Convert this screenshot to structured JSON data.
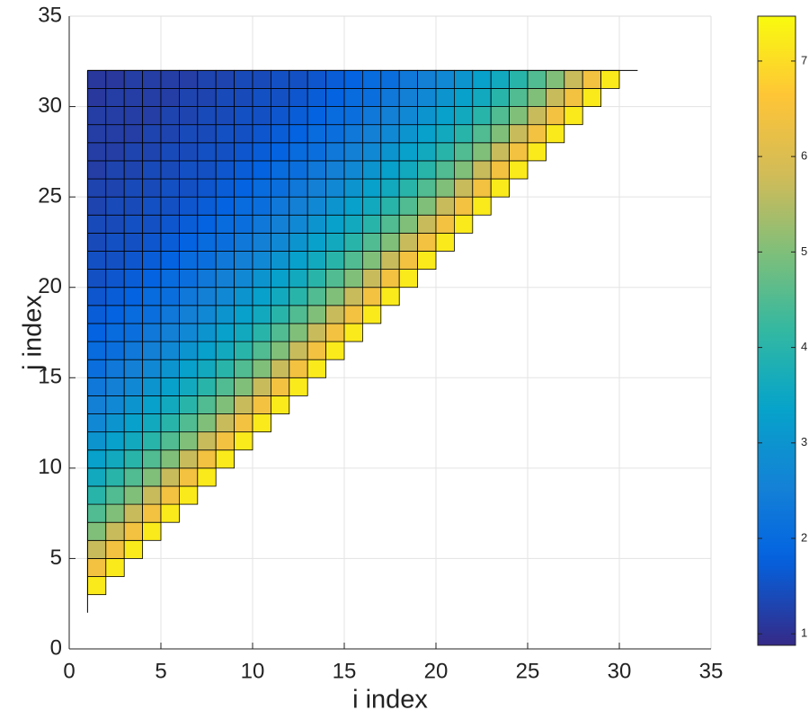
{
  "chart_data": {
    "type": "heatmap",
    "xlabel": "i index",
    "ylabel": "j index",
    "xlim": [
      0,
      35
    ],
    "ylim": [
      0,
      35
    ],
    "xticks": [
      0,
      5,
      10,
      15,
      20,
      25,
      30,
      35
    ],
    "yticks": [
      0,
      5,
      10,
      15,
      20,
      25,
      30,
      35
    ],
    "grid": true,
    "colormap": "parula",
    "clim": [
      0.88,
      7.47
    ],
    "cticks": [
      1,
      2,
      3,
      4,
      5,
      6,
      7
    ],
    "x_edges": [
      1,
      31
    ],
    "y_edges": [
      2,
      32
    ],
    "z": [
      [
        7.2
      ],
      [
        6.4,
        7.2
      ],
      [
        5.7,
        6.4,
        7.2
      ],
      [
        5.0,
        5.7,
        6.4,
        7.2
      ],
      [
        4.5,
        5.0,
        5.7,
        6.4,
        7.2
      ],
      [
        4.0,
        4.5,
        5.0,
        5.7,
        6.4,
        7.2
      ],
      [
        3.6,
        4.0,
        4.5,
        5.0,
        5.7,
        6.4,
        7.2
      ],
      [
        3.3,
        3.6,
        4.0,
        4.5,
        5.0,
        5.7,
        6.4,
        7.2
      ],
      [
        3.0,
        3.3,
        3.6,
        4.0,
        4.5,
        5.0,
        5.7,
        6.4,
        7.2
      ],
      [
        2.7,
        3.0,
        3.3,
        3.6,
        4.0,
        4.5,
        5.0,
        5.7,
        6.4,
        7.2
      ],
      [
        2.5,
        2.7,
        3.0,
        3.3,
        3.6,
        4.0,
        4.5,
        5.0,
        5.7,
        6.4,
        7.2
      ],
      [
        2.3,
        2.5,
        2.7,
        3.0,
        3.3,
        3.6,
        4.0,
        4.5,
        5.0,
        5.7,
        6.4,
        7.2
      ],
      [
        2.1,
        2.3,
        2.5,
        2.7,
        3.0,
        3.3,
        3.6,
        4.0,
        4.5,
        5.0,
        5.7,
        6.4,
        7.2
      ],
      [
        2.0,
        2.1,
        2.3,
        2.5,
        2.7,
        3.0,
        3.3,
        3.6,
        4.0,
        4.5,
        5.0,
        5.7,
        6.4,
        7.2
      ],
      [
        1.8,
        2.0,
        2.1,
        2.3,
        2.5,
        2.7,
        3.0,
        3.3,
        3.6,
        4.0,
        4.5,
        5.0,
        5.7,
        6.4,
        7.2
      ],
      [
        1.7,
        1.8,
        2.0,
        2.1,
        2.3,
        2.5,
        2.7,
        3.0,
        3.3,
        3.6,
        4.0,
        4.5,
        5.0,
        5.7,
        6.4,
        7.2
      ],
      [
        1.6,
        1.7,
        1.8,
        2.0,
        2.1,
        2.3,
        2.5,
        2.7,
        3.0,
        3.3,
        3.6,
        4.0,
        4.5,
        5.0,
        5.7,
        6.4,
        7.2
      ],
      [
        1.5,
        1.6,
        1.7,
        1.8,
        2.0,
        2.1,
        2.3,
        2.5,
        2.7,
        3.0,
        3.3,
        3.6,
        4.0,
        4.5,
        5.0,
        5.7,
        6.4,
        7.2
      ],
      [
        1.5,
        1.5,
        1.6,
        1.7,
        1.8,
        2.0,
        2.1,
        2.3,
        2.5,
        2.7,
        3.0,
        3.3,
        3.6,
        4.0,
        4.5,
        5.0,
        5.7,
        6.4,
        7.2
      ],
      [
        1.4,
        1.5,
        1.5,
        1.6,
        1.7,
        1.8,
        2.0,
        2.1,
        2.3,
        2.5,
        2.7,
        3.0,
        3.3,
        3.6,
        4.0,
        4.5,
        5.0,
        5.7,
        6.4,
        7.2
      ],
      [
        1.4,
        1.4,
        1.5,
        1.5,
        1.6,
        1.7,
        1.8,
        2.0,
        2.1,
        2.3,
        2.5,
        2.7,
        3.0,
        3.3,
        3.6,
        4.0,
        4.5,
        5.0,
        5.7,
        6.4,
        7.2
      ],
      [
        1.3,
        1.4,
        1.4,
        1.5,
        1.5,
        1.6,
        1.7,
        1.8,
        2.0,
        2.1,
        2.3,
        2.5,
        2.7,
        3.0,
        3.3,
        3.6,
        4.0,
        4.5,
        5.0,
        5.7,
        6.4,
        7.2
      ],
      [
        1.3,
        1.3,
        1.4,
        1.4,
        1.5,
        1.5,
        1.6,
        1.7,
        1.8,
        2.0,
        2.1,
        2.3,
        2.5,
        2.7,
        3.0,
        3.3,
        3.6,
        4.0,
        4.5,
        5.0,
        5.7,
        6.4,
        7.2
      ],
      [
        1.2,
        1.3,
        1.3,
        1.4,
        1.4,
        1.5,
        1.5,
        1.6,
        1.7,
        1.8,
        2.0,
        2.1,
        2.3,
        2.5,
        2.7,
        3.0,
        3.3,
        3.6,
        4.0,
        4.5,
        5.0,
        5.7,
        6.4,
        7.2
      ],
      [
        1.2,
        1.2,
        1.3,
        1.3,
        1.4,
        1.4,
        1.5,
        1.5,
        1.6,
        1.7,
        1.8,
        2.0,
        2.1,
        2.3,
        2.5,
        2.7,
        3.0,
        3.3,
        3.6,
        4.0,
        4.5,
        5.0,
        5.7,
        6.4,
        7.2
      ],
      [
        1.2,
        1.2,
        1.2,
        1.3,
        1.3,
        1.4,
        1.4,
        1.5,
        1.5,
        1.6,
        1.7,
        1.8,
        2.0,
        2.1,
        2.3,
        2.5,
        2.7,
        3.0,
        3.3,
        3.6,
        4.0,
        4.5,
        5.0,
        5.7,
        6.4,
        7.2
      ],
      [
        1.2,
        1.2,
        1.2,
        1.2,
        1.3,
        1.3,
        1.4,
        1.4,
        1.5,
        1.5,
        1.6,
        1.7,
        1.8,
        2.0,
        2.1,
        2.3,
        2.5,
        2.7,
        3.0,
        3.3,
        3.6,
        4.0,
        4.5,
        5.0,
        5.7,
        6.4,
        7.2
      ],
      [
        1.1,
        1.2,
        1.2,
        1.2,
        1.2,
        1.3,
        1.3,
        1.4,
        1.4,
        1.5,
        1.5,
        1.6,
        1.7,
        1.8,
        2.0,
        2.1,
        2.3,
        2.5,
        2.7,
        3.0,
        3.3,
        3.6,
        4.0,
        4.5,
        5.0,
        5.7,
        6.4,
        7.2
      ],
      [
        1.1,
        1.1,
        1.2,
        1.2,
        1.2,
        1.2,
        1.3,
        1.3,
        1.4,
        1.4,
        1.5,
        1.5,
        1.6,
        1.7,
        1.8,
        2.0,
        2.1,
        2.3,
        2.5,
        2.7,
        3.0,
        3.3,
        3.6,
        4.0,
        4.5,
        5.0,
        5.7,
        6.4,
        7.2
      ]
    ]
  }
}
